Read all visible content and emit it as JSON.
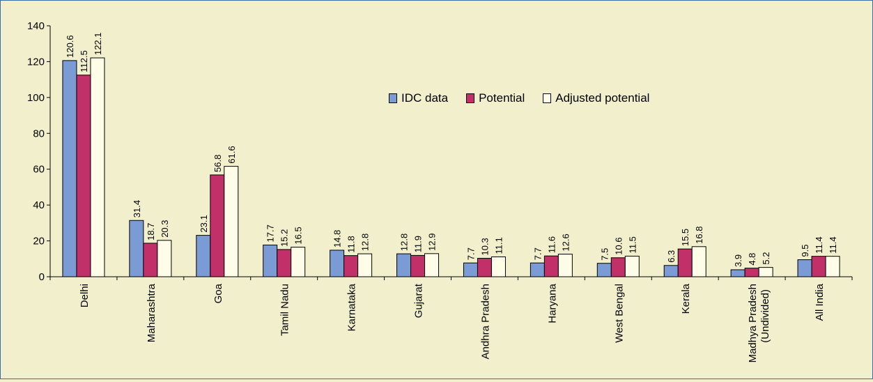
{
  "chart_data": {
    "type": "bar",
    "categories": [
      "Delhi",
      "Maharashtra",
      "Goa",
      "Tamil Nadu",
      "Karnataka",
      "Gujarat",
      "Andhra Pradesh",
      "Haryana",
      "West Bengal",
      "Kerala",
      "Madhya Pradesh\n(Undivided)",
      "All India"
    ],
    "series": [
      {
        "name": "IDC data",
        "color": "#7b9bd4",
        "values": [
          120.6,
          31.4,
          23.1,
          17.7,
          14.8,
          12.8,
          7.7,
          7.7,
          7.5,
          6.3,
          3.9,
          9.5
        ]
      },
      {
        "name": "Potential",
        "color": "#c2306a",
        "values": [
          112.5,
          18.7,
          56.8,
          15.2,
          11.8,
          11.9,
          10.3,
          11.6,
          10.6,
          15.5,
          4.8,
          11.4
        ]
      },
      {
        "name": "Adjusted potential",
        "color": "#fffde8",
        "values": [
          122.1,
          20.3,
          61.6,
          16.5,
          12.8,
          12.9,
          11.1,
          12.6,
          11.5,
          16.8,
          5.2,
          11.4
        ]
      }
    ],
    "ylim": [
      0,
      140
    ],
    "yticks": [
      0,
      20,
      40,
      60,
      80,
      100,
      120,
      140
    ],
    "legend_position": "top-right",
    "grid": false
  }
}
